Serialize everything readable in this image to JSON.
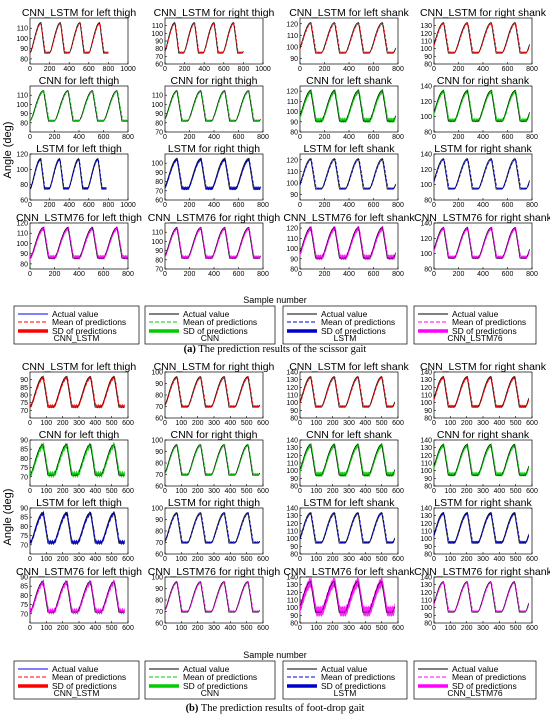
{
  "panels": {
    "a": {
      "caption_letter": "(a)",
      "caption_text": " The prediction results of the scissor gait",
      "y_label": "Angle (deg)",
      "x_label": "Sample number"
    },
    "b": {
      "caption_letter": "(b)",
      "caption_text": " The prediction results of foot-drop gait",
      "y_label": "Angle (deg)",
      "x_label": "Sample number"
    }
  },
  "legend": {
    "actual": "Actual value",
    "mean": "Mean of predictions",
    "sd": "SD of predictions",
    "models": [
      "CNN_LSTM",
      "CNN",
      "LSTM",
      "CNN_LSTM76"
    ]
  },
  "colors": {
    "actual": "#000000",
    "CNN_LSTM": "#ff0000",
    "CNN": "#00cc00",
    "LSTM": "#0000cc",
    "CNN_LSTM76": "#ff00ff",
    "legend_actual": "#0000ff"
  },
  "chart_data": [
    {
      "panel": "a",
      "type": "line",
      "title": "CNN_LSTM for left thigh",
      "model": "CNN_LSTM",
      "xlim": [
        0,
        1000
      ],
      "ylim": [
        75,
        120
      ],
      "xticks": [
        0,
        200,
        400,
        600,
        800,
        1000
      ],
      "yticks": [
        80,
        90,
        100,
        110
      ],
      "yoffset": 0,
      "xmax_data": 800,
      "amp": 0.4
    },
    {
      "panel": "a",
      "type": "line",
      "title": "CNN_LSTM for right thigh",
      "model": "CNN_LSTM",
      "xlim": [
        0,
        1000
      ],
      "ylim": [
        60,
        120
      ],
      "xticks": [
        0,
        200,
        400,
        600,
        800,
        1000
      ],
      "yticks": [
        60,
        70,
        80,
        90,
        100,
        110
      ],
      "yoffset": 0.05,
      "xmax_data": 800,
      "amp": 0.4
    },
    {
      "panel": "a",
      "type": "line",
      "title": "CNN_LSTM for left shank",
      "model": "CNN_LSTM",
      "xlim": [
        0,
        800
      ],
      "ylim": [
        85,
        125
      ],
      "xticks": [
        0,
        200,
        400,
        600,
        800
      ],
      "yticks": [
        90,
        100,
        110,
        120
      ],
      "yoffset": 0.1,
      "xmax_data": 780,
      "amp": 0.35
    },
    {
      "panel": "a",
      "type": "line",
      "title": "CNN_LSTM for right shank",
      "model": "CNN_LSTM",
      "xlim": [
        0,
        800
      ],
      "ylim": [
        80,
        140
      ],
      "xticks": [
        0,
        200,
        400,
        600,
        800
      ],
      "yticks": [
        80,
        90,
        100,
        110,
        120,
        130
      ],
      "yoffset": 0.15,
      "xmax_data": 780,
      "amp": 0.4
    },
    {
      "panel": "a",
      "type": "line",
      "title": "CNN for left thigh",
      "model": "CNN",
      "xlim": [
        0,
        800
      ],
      "ylim": [
        70,
        120
      ],
      "xticks": [
        0,
        200,
        400,
        600,
        800
      ],
      "yticks": [
        80,
        90,
        100,
        110
      ],
      "yoffset": 0,
      "xmax_data": 800,
      "amp": 0.4
    },
    {
      "panel": "a",
      "type": "line",
      "title": "CNN for right thigh",
      "model": "CNN",
      "xlim": [
        0,
        800
      ],
      "ylim": [
        70,
        120
      ],
      "xticks": [
        0,
        200,
        400,
        600,
        800
      ],
      "yticks": [
        70,
        80,
        90,
        100,
        110
      ],
      "yoffset": 0.05,
      "xmax_data": 780,
      "amp": 0.4
    },
    {
      "panel": "a",
      "type": "line",
      "title": "CNN for left shank",
      "model": "CNN",
      "xlim": [
        0,
        800
      ],
      "ylim": [
        80,
        125
      ],
      "xticks": [
        0,
        200,
        400,
        600,
        800
      ],
      "yticks": [
        80,
        90,
        100,
        110,
        120
      ],
      "yoffset": 0.1,
      "xmax_data": 780,
      "amp": 1.4
    },
    {
      "panel": "a",
      "type": "line",
      "title": "CNN for right shank",
      "model": "CNN",
      "xlim": [
        0,
        800
      ],
      "ylim": [
        80,
        140
      ],
      "xticks": [
        0,
        200,
        400,
        600,
        800
      ],
      "yticks": [
        80,
        100,
        120,
        140
      ],
      "yoffset": 0.15,
      "xmax_data": 780,
      "amp": 1.1
    },
    {
      "panel": "a",
      "type": "line",
      "title": "LSTM for left thigh",
      "model": "LSTM",
      "xlim": [
        0,
        1000
      ],
      "ylim": [
        60,
        120
      ],
      "xticks": [
        0,
        200,
        400,
        600,
        800,
        1000
      ],
      "yticks": [
        60,
        80,
        100,
        120
      ],
      "yoffset": 0,
      "xmax_data": 780,
      "amp": 0.7
    },
    {
      "panel": "a",
      "type": "line",
      "title": "LSTM for right thigh",
      "model": "LSTM",
      "xlim": [
        0,
        800
      ],
      "ylim": [
        60,
        110
      ],
      "xticks": [
        0,
        200,
        400,
        600,
        800
      ],
      "yticks": [
        60,
        70,
        80,
        90,
        100
      ],
      "yoffset": 0.05,
      "xmax_data": 780,
      "amp": 1.0
    },
    {
      "panel": "a",
      "type": "line",
      "title": "LSTM for left shank",
      "model": "LSTM",
      "xlim": [
        0,
        800
      ],
      "ylim": [
        85,
        125
      ],
      "xticks": [
        0,
        200,
        400,
        600,
        800
      ],
      "yticks": [
        90,
        100,
        110,
        120
      ],
      "yoffset": 0.1,
      "xmax_data": 780,
      "amp": 0.4
    },
    {
      "panel": "a",
      "type": "line",
      "title": "LSTM for right shank",
      "model": "LSTM",
      "xlim": [
        0,
        800
      ],
      "ylim": [
        80,
        140
      ],
      "xticks": [
        0,
        200,
        400,
        600,
        800
      ],
      "yticks": [
        80,
        100,
        120,
        140
      ],
      "yoffset": 0.15,
      "xmax_data": 780,
      "amp": 0.4
    },
    {
      "panel": "a",
      "type": "line",
      "title": "CNN_LSTM76 for left thigh",
      "model": "CNN_LSTM76",
      "xlim": [
        0,
        800
      ],
      "ylim": [
        75,
        120
      ],
      "xticks": [
        0,
        200,
        400,
        600,
        800
      ],
      "yticks": [
        80,
        90,
        100,
        110,
        120
      ],
      "yoffset": 0,
      "xmax_data": 800,
      "amp": 1.2
    },
    {
      "panel": "a",
      "type": "line",
      "title": "CNN_LSTM76 for right thigh",
      "model": "CNN_LSTM76",
      "xlim": [
        0,
        800
      ],
      "ylim": [
        70,
        120
      ],
      "xticks": [
        0,
        200,
        400,
        600,
        800
      ],
      "yticks": [
        70,
        80,
        90,
        100,
        110
      ],
      "yoffset": 0.05,
      "xmax_data": 780,
      "amp": 1.0
    },
    {
      "panel": "a",
      "type": "line",
      "title": "CNN_LSTM76 for left shank",
      "model": "CNN_LSTM76",
      "xlim": [
        0,
        800
      ],
      "ylim": [
        80,
        125
      ],
      "xticks": [
        0,
        200,
        400,
        600,
        800
      ],
      "yticks": [
        80,
        90,
        100,
        110,
        120
      ],
      "yoffset": 0.1,
      "xmax_data": 780,
      "amp": 1.5
    },
    {
      "panel": "a",
      "type": "line",
      "title": "CNN_LSTM76 for right shank",
      "model": "CNN_LSTM76",
      "xlim": [
        0,
        800
      ],
      "ylim": [
        80,
        140
      ],
      "xticks": [
        0,
        200,
        400,
        600,
        800
      ],
      "yticks": [
        80,
        100,
        120,
        140
      ],
      "yoffset": 0.15,
      "xmax_data": 780,
      "amp": 1.0
    },
    {
      "panel": "b",
      "type": "line",
      "title": "CNN_LSTM for left thigh",
      "model": "CNN_LSTM",
      "xlim": [
        0,
        600
      ],
      "ylim": [
        65,
        95
      ],
      "xticks": [
        0,
        100,
        200,
        300,
        400,
        500,
        600
      ],
      "yticks": [
        70,
        75,
        80,
        85,
        90
      ],
      "yoffset": 0,
      "xmax_data": 580,
      "amp": 1.0
    },
    {
      "panel": "b",
      "type": "line",
      "title": "CNN_LSTM for right thigh",
      "model": "CNN_LSTM",
      "xlim": [
        0,
        600
      ],
      "ylim": [
        60,
        100
      ],
      "xticks": [
        0,
        100,
        200,
        300,
        400,
        500,
        600
      ],
      "yticks": [
        60,
        70,
        80,
        90,
        100
      ],
      "yoffset": 0.05,
      "xmax_data": 580,
      "amp": 0.6
    },
    {
      "panel": "b",
      "type": "line",
      "title": "CNN_LSTM for left shank",
      "model": "CNN_LSTM",
      "xlim": [
        0,
        600
      ],
      "ylim": [
        80,
        140
      ],
      "xticks": [
        0,
        100,
        200,
        300,
        400,
        500,
        600
      ],
      "yticks": [
        80,
        90,
        100,
        110,
        120,
        130,
        140
      ],
      "yoffset": 0.1,
      "xmax_data": 580,
      "amp": 0.6
    },
    {
      "panel": "b",
      "type": "line",
      "title": "CNN_LSTM for right shank",
      "model": "CNN_LSTM",
      "xlim": [
        0,
        600
      ],
      "ylim": [
        80,
        140
      ],
      "xticks": [
        0,
        100,
        200,
        300,
        400,
        500,
        600
      ],
      "yticks": [
        80,
        90,
        100,
        110,
        120,
        130,
        140
      ],
      "yoffset": 0.15,
      "xmax_data": 580,
      "amp": 0.8
    },
    {
      "panel": "b",
      "type": "line",
      "title": "CNN for left thigh",
      "model": "CNN",
      "xlim": [
        0,
        600
      ],
      "ylim": [
        65,
        90
      ],
      "xticks": [
        0,
        100,
        200,
        300,
        400,
        500,
        600
      ],
      "yticks": [
        70,
        75,
        80,
        85,
        90
      ],
      "yoffset": 0,
      "xmax_data": 580,
      "amp": 1.6
    },
    {
      "panel": "b",
      "type": "line",
      "title": "CNN for right thigh",
      "model": "CNN",
      "xlim": [
        0,
        600
      ],
      "ylim": [
        60,
        100
      ],
      "xticks": [
        0,
        100,
        200,
        300,
        400,
        500,
        600
      ],
      "yticks": [
        60,
        70,
        80,
        90,
        100
      ],
      "yoffset": 0.05,
      "xmax_data": 580,
      "amp": 0.6
    },
    {
      "panel": "b",
      "type": "line",
      "title": "CNN for left shank",
      "model": "CNN",
      "xlim": [
        0,
        600
      ],
      "ylim": [
        80,
        140
      ],
      "xticks": [
        0,
        100,
        200,
        300,
        400,
        500,
        600
      ],
      "yticks": [
        80,
        90,
        100,
        110,
        120,
        130,
        140
      ],
      "yoffset": 0.1,
      "xmax_data": 580,
      "amp": 1.4
    },
    {
      "panel": "b",
      "type": "line",
      "title": "CNN for right shank",
      "model": "CNN",
      "xlim": [
        0,
        600
      ],
      "ylim": [
        80,
        140
      ],
      "xticks": [
        0,
        100,
        200,
        300,
        400,
        500,
        600
      ],
      "yticks": [
        80,
        90,
        100,
        110,
        120,
        130,
        140
      ],
      "yoffset": 0.15,
      "xmax_data": 580,
      "amp": 1.2
    },
    {
      "panel": "b",
      "type": "line",
      "title": "LSTM for left thigh",
      "model": "LSTM",
      "xlim": [
        0,
        600
      ],
      "ylim": [
        65,
        90
      ],
      "xticks": [
        0,
        100,
        200,
        300,
        400,
        500,
        600
      ],
      "yticks": [
        70,
        75,
        80,
        85,
        90
      ],
      "yoffset": 0,
      "xmax_data": 580,
      "amp": 1.2
    },
    {
      "panel": "b",
      "type": "line",
      "title": "LSTM for right thigh",
      "model": "LSTM",
      "xlim": [
        0,
        600
      ],
      "ylim": [
        60,
        100
      ],
      "xticks": [
        0,
        100,
        200,
        300,
        400,
        500,
        600
      ],
      "yticks": [
        60,
        70,
        80,
        90,
        100
      ],
      "yoffset": 0.05,
      "xmax_data": 580,
      "amp": 0.5
    },
    {
      "panel": "b",
      "type": "line",
      "title": "LSTM for left shank",
      "model": "LSTM",
      "xlim": [
        0,
        600
      ],
      "ylim": [
        80,
        140
      ],
      "xticks": [
        0,
        100,
        200,
        300,
        400,
        500,
        600
      ],
      "yticks": [
        80,
        90,
        100,
        110,
        120,
        130,
        140
      ],
      "yoffset": 0.1,
      "xmax_data": 580,
      "amp": 0.6
    },
    {
      "panel": "b",
      "type": "line",
      "title": "LSTM for right shank",
      "model": "LSTM",
      "xlim": [
        0,
        600
      ],
      "ylim": [
        80,
        140
      ],
      "xticks": [
        0,
        100,
        200,
        300,
        400,
        500,
        600
      ],
      "yticks": [
        80,
        90,
        100,
        110,
        120,
        130,
        140
      ],
      "yoffset": 0.15,
      "xmax_data": 580,
      "amp": 0.8
    },
    {
      "panel": "b",
      "type": "line",
      "title": "CNN_LSTM76 for left thigh",
      "model": "CNN_LSTM76",
      "xlim": [
        0,
        600
      ],
      "ylim": [
        65,
        90
      ],
      "xticks": [
        0,
        100,
        200,
        300,
        400,
        500,
        600
      ],
      "yticks": [
        70,
        75,
        80,
        85,
        90
      ],
      "yoffset": 0,
      "xmax_data": 580,
      "amp": 1.5
    },
    {
      "panel": "b",
      "type": "line",
      "title": "CNN_LSTM76 for right thigh",
      "model": "CNN_LSTM76",
      "xlim": [
        0,
        600
      ],
      "ylim": [
        60,
        100
      ],
      "xticks": [
        0,
        100,
        200,
        300,
        400,
        500,
        600
      ],
      "yticks": [
        60,
        70,
        80,
        90,
        100
      ],
      "yoffset": 0.05,
      "xmax_data": 580,
      "amp": 0.5
    },
    {
      "panel": "b",
      "type": "line",
      "title": "CNN_LSTM76 for left shank",
      "model": "CNN_LSTM76",
      "xlim": [
        0,
        600
      ],
      "ylim": [
        80,
        140
      ],
      "xticks": [
        0,
        100,
        200,
        300,
        400,
        500,
        600
      ],
      "yticks": [
        80,
        90,
        100,
        110,
        120,
        130,
        140
      ],
      "yoffset": 0.1,
      "xmax_data": 580,
      "amp": 3.0
    },
    {
      "panel": "b",
      "type": "line",
      "title": "CNN_LSTM76 for right shank",
      "model": "CNN_LSTM76",
      "xlim": [
        0,
        600
      ],
      "ylim": [
        80,
        140
      ],
      "xticks": [
        0,
        100,
        200,
        300,
        400,
        500,
        600
      ],
      "yticks": [
        80,
        90,
        100,
        110,
        120,
        130,
        140
      ],
      "yoffset": 0.15,
      "xmax_data": 580,
      "amp": 0.5
    }
  ]
}
